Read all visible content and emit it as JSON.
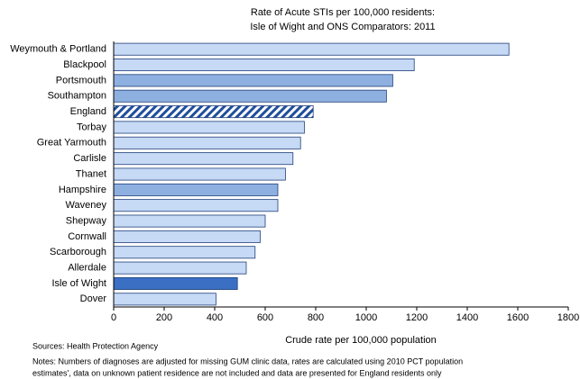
{
  "chart_data": {
    "type": "hbar",
    "title": [
      "Rate of Acute STIs per 100,000 residents:",
      "Isle of Wight and ONS Comparators: 2011"
    ],
    "xlabel": "Crude rate per 100,000 population",
    "categories": [
      "Weymouth & Portland",
      "Blackpool",
      "Portsmouth",
      "Southampton",
      "England",
      "Torbay",
      "Great Yarmouth",
      "Carlisle",
      "Thanet",
      "Hampshire",
      "Waveney",
      "Shepway",
      "Cornwall",
      "Scarborough",
      "Allerdale",
      "Isle of Wight",
      "Dover"
    ],
    "values": [
      1565,
      1190,
      1105,
      1080,
      790,
      755,
      740,
      710,
      680,
      650,
      650,
      600,
      580,
      560,
      525,
      490,
      405
    ],
    "colors": [
      "#c6d9f5",
      "#c6d9f5",
      "#8db0e0",
      "#8db0e0",
      "#1f4e9c",
      "#c6d9f5",
      "#c6d9f5",
      "#c6d9f5",
      "#c6d9f5",
      "#8db0e0",
      "#c6d9f5",
      "#c6d9f5",
      "#c6d9f5",
      "#c6d9f5",
      "#c6d9f5",
      "#3a6fc4",
      "#c6d9f5"
    ],
    "hatched": [
      false,
      false,
      false,
      false,
      true,
      false,
      false,
      false,
      false,
      false,
      false,
      false,
      false,
      false,
      false,
      false,
      false
    ],
    "xlim": [
      0,
      1800
    ],
    "xticks": [
      0,
      200,
      400,
      600,
      800,
      1000,
      1200,
      1400,
      1600,
      1800
    ],
    "grid": false,
    "source": "Sources: Health Protection Agency",
    "notes": [
      "Notes: Numbers of diagnoses are adjusted for missing GUM clinic data, rates are calculated using 2010 PCT population",
      "estimates', data on unknown patient residence are not included and data are presented for England residents only"
    ]
  }
}
